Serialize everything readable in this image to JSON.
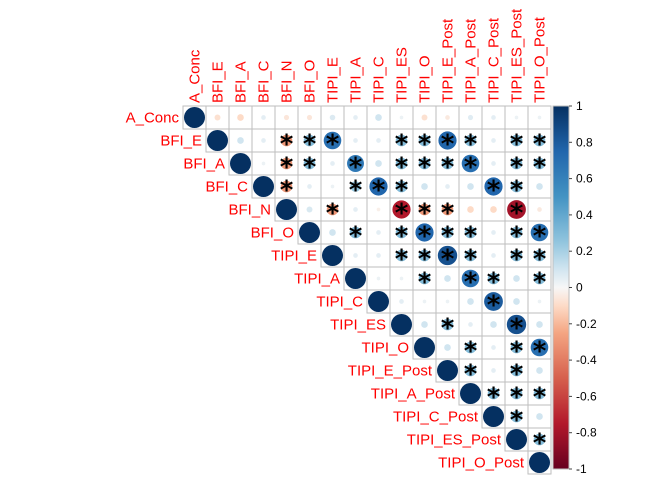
{
  "chart_data": {
    "type": "heatmap",
    "style": "upper-triangle correlation circles with significance stars",
    "variables": [
      "A_Conc",
      "BFI_E",
      "BFI_A",
      "BFI_C",
      "BFI_N",
      "BFI_O",
      "TIPI_E",
      "TIPI_A",
      "TIPI_C",
      "TIPI_ES",
      "TIPI_O",
      "TIPI_E_Post",
      "TIPI_A_Post",
      "TIPI_C_Post",
      "TIPI_ES_Post",
      "TIPI_O_Post"
    ],
    "matrix": [
      [
        1,
        -0.08,
        -0.1,
        0.05,
        -0.06,
        -0.06,
        0.07,
        0.05,
        0.1,
        0.03,
        -0.08,
        -0.05,
        0.06,
        0.05,
        0.03,
        0.03
      ],
      [
        null,
        1,
        0.1,
        0.05,
        -0.3,
        0.3,
        0.7,
        0.05,
        0.05,
        0.3,
        0.3,
        0.75,
        0.3,
        0.05,
        0.3,
        0.3
      ],
      [
        null,
        null,
        1,
        0.03,
        -0.3,
        0.3,
        0.05,
        0.65,
        0.1,
        0.3,
        0.3,
        0.3,
        0.7,
        0.05,
        0.3,
        0.3
      ],
      [
        null,
        null,
        null,
        1,
        -0.3,
        0.05,
        0.03,
        0.25,
        0.75,
        0.3,
        0.1,
        0.05,
        0.1,
        0.75,
        0.3,
        0.1
      ],
      [
        null,
        null,
        null,
        null,
        1,
        0.08,
        -0.3,
        0.05,
        -0.03,
        -0.75,
        -0.3,
        -0.3,
        -0.1,
        -0.1,
        -0.8,
        -0.05
      ],
      [
        null,
        null,
        null,
        null,
        null,
        1,
        0.1,
        0.3,
        0.05,
        0.3,
        0.75,
        0.3,
        0.3,
        0.05,
        0.3,
        0.7
      ],
      [
        null,
        null,
        null,
        null,
        null,
        null,
        1,
        0.05,
        0.05,
        0.3,
        0.3,
        0.85,
        0.3,
        0.05,
        0.3,
        0.3
      ],
      [
        null,
        null,
        null,
        null,
        null,
        null,
        null,
        1,
        0.03,
        0.03,
        0.3,
        0.1,
        0.7,
        0.3,
        0.1,
        0.3
      ],
      [
        null,
        null,
        null,
        null,
        null,
        null,
        null,
        null,
        1,
        0.05,
        0.03,
        0.03,
        0.1,
        0.8,
        0.1,
        0.03
      ],
      [
        null,
        null,
        null,
        null,
        null,
        null,
        null,
        null,
        null,
        1,
        0.1,
        0.3,
        0.05,
        0.1,
        0.85,
        0.1
      ],
      [
        null,
        null,
        null,
        null,
        null,
        null,
        null,
        null,
        null,
        null,
        1,
        0.1,
        0.3,
        0.05,
        0.3,
        0.7
      ],
      [
        null,
        null,
        null,
        null,
        null,
        null,
        null,
        null,
        null,
        null,
        null,
        1,
        0.3,
        0.05,
        0.3,
        0.1
      ],
      [
        null,
        null,
        null,
        null,
        null,
        null,
        null,
        null,
        null,
        null,
        null,
        null,
        1,
        0.3,
        0.3,
        0.3
      ],
      [
        null,
        null,
        null,
        null,
        null,
        null,
        null,
        null,
        null,
        null,
        null,
        null,
        null,
        1,
        0.3,
        0.1
      ],
      [
        null,
        null,
        null,
        null,
        null,
        null,
        null,
        null,
        null,
        null,
        null,
        null,
        null,
        null,
        1,
        0.3
      ],
      [
        null,
        null,
        null,
        null,
        null,
        null,
        null,
        null,
        null,
        null,
        null,
        null,
        null,
        null,
        null,
        1
      ]
    ],
    "significance_marker": "*",
    "significant_cells": [
      [
        1,
        4
      ],
      [
        1,
        5
      ],
      [
        1,
        6
      ],
      [
        1,
        9
      ],
      [
        1,
        10
      ],
      [
        1,
        11
      ],
      [
        1,
        12
      ],
      [
        1,
        14
      ],
      [
        1,
        15
      ],
      [
        2,
        4
      ],
      [
        2,
        5
      ],
      [
        2,
        7
      ],
      [
        2,
        9
      ],
      [
        2,
        10
      ],
      [
        2,
        11
      ],
      [
        2,
        12
      ],
      [
        2,
        14
      ],
      [
        2,
        15
      ],
      [
        3,
        4
      ],
      [
        3,
        7
      ],
      [
        3,
        8
      ],
      [
        3,
        9
      ],
      [
        3,
        13
      ],
      [
        3,
        14
      ],
      [
        4,
        6
      ],
      [
        4,
        9
      ],
      [
        4,
        10
      ],
      [
        4,
        11
      ],
      [
        4,
        14
      ],
      [
        5,
        7
      ],
      [
        5,
        9
      ],
      [
        5,
        10
      ],
      [
        5,
        11
      ],
      [
        5,
        12
      ],
      [
        5,
        14
      ],
      [
        5,
        15
      ],
      [
        6,
        9
      ],
      [
        6,
        10
      ],
      [
        6,
        11
      ],
      [
        6,
        12
      ],
      [
        6,
        14
      ],
      [
        6,
        15
      ],
      [
        7,
        10
      ],
      [
        7,
        12
      ],
      [
        7,
        13
      ],
      [
        7,
        15
      ],
      [
        8,
        13
      ],
      [
        9,
        11
      ],
      [
        9,
        14
      ],
      [
        10,
        12
      ],
      [
        10,
        14
      ],
      [
        10,
        15
      ],
      [
        11,
        12
      ],
      [
        11,
        14
      ],
      [
        12,
        13
      ],
      [
        12,
        14
      ],
      [
        12,
        15
      ],
      [
        13,
        14
      ],
      [
        14,
        15
      ]
    ],
    "colorbar": {
      "min": -1,
      "max": 1,
      "ticks": [
        "1",
        "0.8",
        "0.6",
        "0.4",
        "0.2",
        "0",
        "-0.2",
        "-0.4",
        "-0.6",
        "-0.8",
        "-1"
      ]
    },
    "colors": {
      "negative_end": "#67001F",
      "neutral": "#F7F7F7",
      "positive_end": "#053061",
      "label_color": "#FF0000",
      "grid": "#BEBEBE"
    }
  }
}
